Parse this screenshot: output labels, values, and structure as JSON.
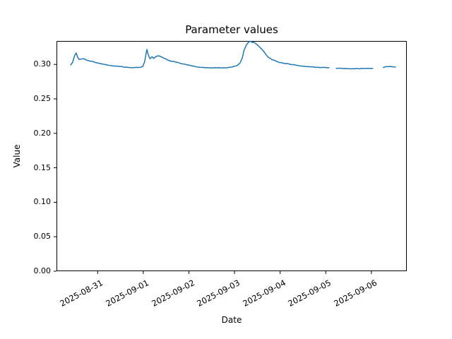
{
  "figure": {
    "background": "#ffffff",
    "spine_color": "#000000",
    "text_color": "#000000"
  },
  "chart_data": {
    "type": "line",
    "title": "Parameter values",
    "xlabel": "Date",
    "ylabel": "Value",
    "grid": false,
    "legend_position": "none",
    "series_name": "Parameter values",
    "series_color": "#1f77b4",
    "line_width": 1.5,
    "x_unit": "days since 2025-08-30 00:00",
    "xlim": [
      0.098,
      7.776
    ],
    "ylim": [
      0,
      0.334
    ],
    "xticks": {
      "values": [
        1,
        2,
        3,
        4,
        5,
        6,
        7
      ],
      "labels": [
        "2025-08-31",
        "2025-09-01",
        "2025-09-02",
        "2025-09-03",
        "2025-09-04",
        "2025-09-05",
        "2025-09-06"
      ]
    },
    "yticks": {
      "values": [
        0.0,
        0.05,
        0.1,
        0.15,
        0.2,
        0.25,
        0.3
      ],
      "labels": [
        "0.00",
        "0.05",
        "0.10",
        "0.15",
        "0.20",
        "0.25",
        "0.30"
      ]
    },
    "segments": [
      [
        [
          0.41,
          0.299
        ],
        [
          0.45,
          0.303
        ],
        [
          0.5,
          0.3135
        ],
        [
          0.53,
          0.3168
        ],
        [
          0.56,
          0.311
        ],
        [
          0.59,
          0.3071
        ],
        [
          0.64,
          0.3076
        ],
        [
          0.69,
          0.3081
        ],
        [
          0.75,
          0.3066
        ],
        [
          0.83,
          0.3051
        ],
        [
          0.92,
          0.3035
        ],
        [
          1.03,
          0.3015
        ],
        [
          1.15,
          0.3
        ],
        [
          1.29,
          0.2984
        ],
        [
          1.43,
          0.2974
        ],
        [
          1.57,
          0.2964
        ],
        [
          1.72,
          0.2956
        ],
        [
          1.85,
          0.2954
        ],
        [
          1.94,
          0.2958
        ],
        [
          1.99,
          0.2975
        ],
        [
          2.03,
          0.304
        ],
        [
          2.06,
          0.315
        ],
        [
          2.08,
          0.3215
        ],
        [
          2.1,
          0.316
        ],
        [
          2.13,
          0.3105
        ],
        [
          2.15,
          0.3085
        ],
        [
          2.19,
          0.3108
        ],
        [
          2.23,
          0.3085
        ],
        [
          2.28,
          0.3112
        ],
        [
          2.33,
          0.3125
        ],
        [
          2.37,
          0.3117
        ],
        [
          2.42,
          0.31
        ],
        [
          2.5,
          0.3076
        ],
        [
          2.57,
          0.3055
        ],
        [
          2.67,
          0.304
        ],
        [
          2.76,
          0.3025
        ],
        [
          2.85,
          0.3011
        ],
        [
          2.95,
          0.2997
        ],
        [
          3.04,
          0.2982
        ],
        [
          3.13,
          0.2968
        ],
        [
          3.24,
          0.2958
        ],
        [
          3.38,
          0.2951
        ],
        [
          3.53,
          0.2949
        ],
        [
          3.69,
          0.295
        ],
        [
          3.84,
          0.2953
        ],
        [
          3.97,
          0.2963
        ],
        [
          4.06,
          0.2984
        ],
        [
          4.12,
          0.302
        ],
        [
          4.17,
          0.3092
        ],
        [
          4.21,
          0.3204
        ],
        [
          4.26,
          0.3286
        ],
        [
          4.31,
          0.3321
        ],
        [
          4.35,
          0.3334
        ],
        [
          4.39,
          0.3316
        ],
        [
          4.42,
          0.3326
        ],
        [
          4.46,
          0.3305
        ],
        [
          4.51,
          0.3275
        ],
        [
          4.56,
          0.3244
        ],
        [
          4.62,
          0.3204
        ],
        [
          4.68,
          0.3152
        ],
        [
          4.74,
          0.3106
        ],
        [
          4.82,
          0.307
        ],
        [
          4.9,
          0.305
        ],
        [
          4.99,
          0.303
        ],
        [
          5.1,
          0.3014
        ],
        [
          5.21,
          0.3004
        ],
        [
          5.33,
          0.2989
        ],
        [
          5.47,
          0.2975
        ],
        [
          5.62,
          0.2965
        ],
        [
          5.79,
          0.2958
        ],
        [
          5.95,
          0.2953
        ],
        [
          6.07,
          0.2952
        ]
      ],
      [
        [
          6.23,
          0.2946
        ],
        [
          6.37,
          0.2942
        ],
        [
          6.52,
          0.2938
        ],
        [
          6.68,
          0.2938
        ],
        [
          6.82,
          0.2941
        ],
        [
          7.03,
          0.2943
        ]
      ],
      [
        [
          7.26,
          0.2955
        ],
        [
          7.33,
          0.2966
        ],
        [
          7.42,
          0.2968
        ],
        [
          7.53,
          0.2962
        ]
      ]
    ]
  }
}
